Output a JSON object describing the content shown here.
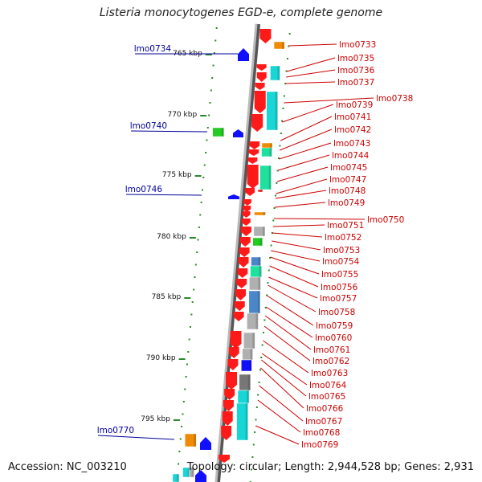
{
  "title": "Listeria monocytogenes EGD-e, complete genome",
  "footer": {
    "accession": "Accession: NC_003210",
    "summary": "Topology: circular; Length: 2,944,528 bp; Genes: 2,931"
  },
  "colors": {
    "red": "#ff1a1a",
    "orange": "#f08a00",
    "cyan": "#19d6d6",
    "teal": "#20e0a0",
    "blue": "#1010ff",
    "green": "#22cc22",
    "steel": "#4a86c8",
    "gray": "#b0b0b0",
    "darkgray": "#777777",
    "label_right": "#cc0000",
    "label_left": "#000099"
  },
  "ticks": [
    {
      "label": "765 kbp"
    },
    {
      "label": "770 kbp"
    },
    {
      "label": "775 kbp"
    },
    {
      "label": "780 kbp"
    },
    {
      "label": "785 kbp"
    },
    {
      "label": "790 kbp"
    },
    {
      "label": "795 kbp"
    }
  ],
  "left_labels": [
    {
      "text": "lmo0734"
    },
    {
      "text": "lmo0740"
    },
    {
      "text": "lmo0746"
    },
    {
      "text": "lmo0770"
    }
  ],
  "right_labels": [
    {
      "text": "lmo0733"
    },
    {
      "text": "lmo0735"
    },
    {
      "text": "lmo0736"
    },
    {
      "text": "lmo0737"
    },
    {
      "text": "lmo0738"
    },
    {
      "text": "lmo0739"
    },
    {
      "text": "lmo0741"
    },
    {
      "text": "lmo0742"
    },
    {
      "text": "lmo0743"
    },
    {
      "text": "lmo0744"
    },
    {
      "text": "lmo0745"
    },
    {
      "text": "lmo0747"
    },
    {
      "text": "lmo0748"
    },
    {
      "text": "lmo0749"
    },
    {
      "text": "lmo0750"
    },
    {
      "text": "lmo0751"
    },
    {
      "text": "lmo0752"
    },
    {
      "text": "lmo0753"
    },
    {
      "text": "lmo0754"
    },
    {
      "text": "lmo0755"
    },
    {
      "text": "lmo0756"
    },
    {
      "text": "lmo0757"
    },
    {
      "text": "lmo0758"
    },
    {
      "text": "lmo0759"
    },
    {
      "text": "lmo0760"
    },
    {
      "text": "lmo0761"
    },
    {
      "text": "lmo0762"
    },
    {
      "text": "lmo0763"
    },
    {
      "text": "lmo0764"
    },
    {
      "text": "lmo0765"
    },
    {
      "text": "lmo0766"
    },
    {
      "text": "lmo0767"
    },
    {
      "text": "lmo0768"
    },
    {
      "text": "lmo0769"
    }
  ]
}
